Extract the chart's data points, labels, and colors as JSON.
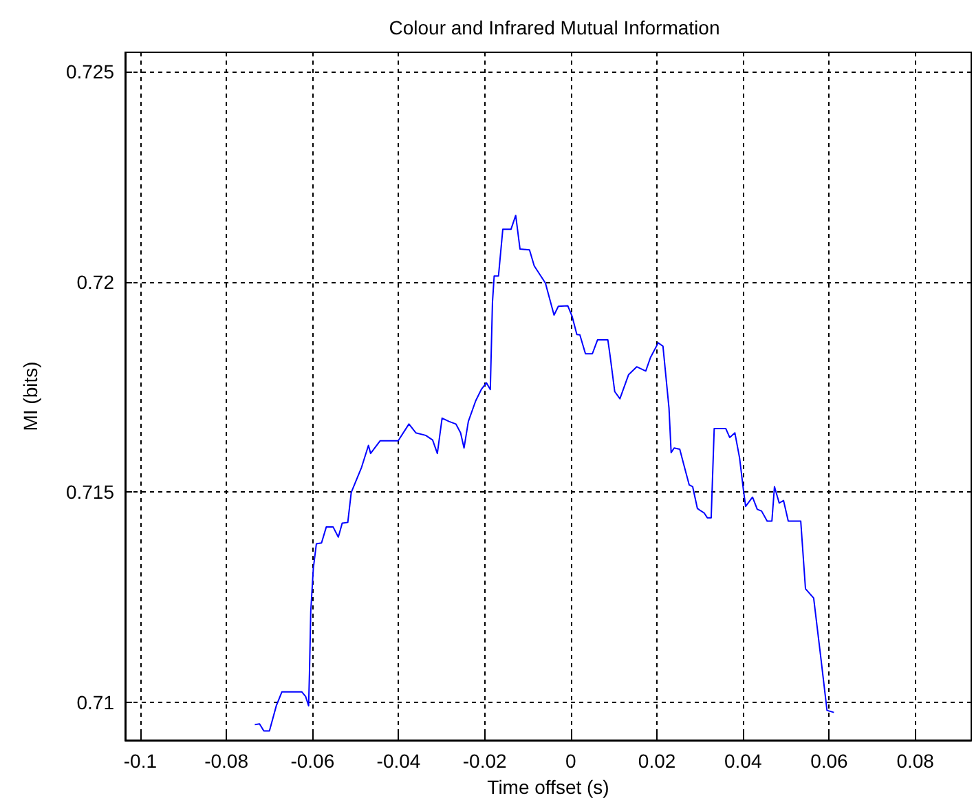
{
  "chart_data": {
    "type": "line",
    "title": "Colour and Infrared Mutual Information",
    "xlabel": "Time offset (s)",
    "ylabel": "MI (bits)",
    "xlim": [
      -0.1035,
      0.093
    ],
    "ylim": [
      0.7091,
      0.72546
    ],
    "xticks": [
      -0.1,
      -0.08,
      -0.06,
      -0.04,
      -0.02,
      0,
      0.02,
      0.04,
      0.06,
      0.08
    ],
    "yticks": [
      0.71,
      0.715,
      0.72,
      0.725
    ],
    "grid": true,
    "marker": "none",
    "line_style": "solid",
    "series": [
      {
        "color": "#0000ff",
        "x": [
          -0.0734,
          -0.0723,
          -0.0713,
          -0.07,
          -0.0684,
          -0.0671,
          -0.0625,
          -0.0616,
          -0.0609,
          -0.0607,
          -0.0604,
          -0.0598,
          -0.0591,
          -0.0579,
          -0.0568,
          -0.0552,
          -0.054,
          -0.0531,
          -0.0518,
          -0.051,
          -0.0486,
          -0.047,
          -0.0465,
          -0.0443,
          -0.0401,
          -0.0376,
          -0.036,
          -0.0337,
          -0.0321,
          -0.031,
          -0.0299,
          -0.0283,
          -0.0267,
          -0.0256,
          -0.0248,
          -0.0238,
          -0.0221,
          -0.0208,
          -0.0196,
          -0.0187,
          -0.0182,
          -0.0178,
          -0.0168,
          -0.0158,
          -0.0139,
          -0.0128,
          -0.0118,
          -0.0096,
          -0.0085,
          -0.0059,
          -0.0039,
          -0.0029,
          -0.0007,
          0.0003,
          0.0014,
          0.0021,
          0.0034,
          0.005,
          0.0062,
          0.0086,
          0.0091,
          0.0102,
          0.0114,
          0.0134,
          0.0153,
          0.0174,
          0.0185,
          0.0203,
          0.0214,
          0.0228,
          0.0233,
          0.024,
          0.0253,
          0.0264,
          0.0275,
          0.0283,
          0.0294,
          0.031,
          0.0317,
          0.0326,
          0.0333,
          0.036,
          0.0369,
          0.0381,
          0.0392,
          0.0401,
          0.0406,
          0.0422,
          0.0433,
          0.0443,
          0.0456,
          0.0467,
          0.0473,
          0.0484,
          0.0494,
          0.0505,
          0.0534,
          0.0545,
          0.0564,
          0.058,
          0.0595,
          0.0611
        ],
        "values": [
          0.70947,
          0.70949,
          0.70932,
          0.70932,
          0.70992,
          0.71025,
          0.71025,
          0.71014,
          0.70992,
          0.71069,
          0.71216,
          0.71319,
          0.71377,
          0.71379,
          0.71417,
          0.71417,
          0.71393,
          0.71426,
          0.71428,
          0.71499,
          0.71559,
          0.71611,
          0.71592,
          0.71622,
          0.71622,
          0.71662,
          0.71641,
          0.71635,
          0.71624,
          0.71592,
          0.71676,
          0.71668,
          0.71662,
          0.71641,
          0.71605,
          0.71668,
          0.71717,
          0.71744,
          0.7176,
          0.71744,
          0.71951,
          0.72014,
          0.72014,
          0.72125,
          0.72125,
          0.72158,
          0.72078,
          0.72076,
          0.72038,
          0.71997,
          0.71921,
          0.71942,
          0.71943,
          0.71918,
          0.71875,
          0.71874,
          0.71829,
          0.71829,
          0.71862,
          0.71862,
          0.71826,
          0.71739,
          0.71722,
          0.71779,
          0.71798,
          0.71788,
          0.7182,
          0.71855,
          0.71847,
          0.717,
          0.71594,
          0.71605,
          0.71602,
          0.71559,
          0.71517,
          0.71513,
          0.71461,
          0.7145,
          0.71439,
          0.71439,
          0.71651,
          0.71651,
          0.7163,
          0.71641,
          0.71581,
          0.71504,
          0.71466,
          0.71488,
          0.71459,
          0.71455,
          0.71431,
          0.71431,
          0.71513,
          0.71474,
          0.7148,
          0.71431,
          0.71431,
          0.7127,
          0.71248,
          0.71112,
          0.70981,
          0.70976
        ]
      }
    ]
  }
}
